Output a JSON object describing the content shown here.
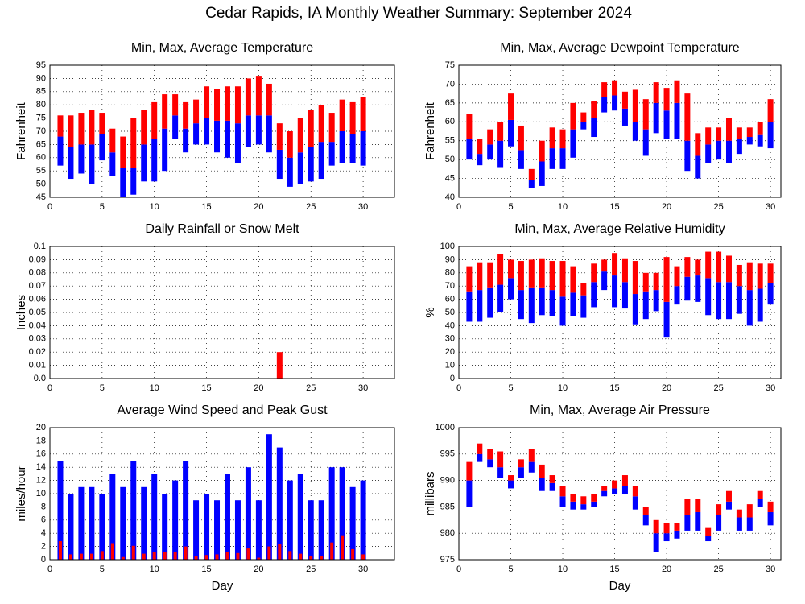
{
  "title": "Cedar Rapids, IA Monthly Weather Summary: September 2024",
  "chart_data": [
    {
      "type": "range",
      "title": "Min, Max, Average Temperature",
      "y_label": "Fahrenheit",
      "x": [
        1,
        2,
        3,
        4,
        5,
        6,
        7,
        8,
        9,
        10,
        11,
        12,
        13,
        14,
        15,
        16,
        17,
        18,
        19,
        20,
        21,
        22,
        23,
        24,
        25,
        26,
        27,
        28,
        29,
        30
      ],
      "xlim": [
        0,
        33
      ],
      "xticks": [
        0,
        5,
        10,
        15,
        20,
        25,
        30
      ],
      "ylim": [
        45,
        95
      ],
      "yticks": [
        45,
        50,
        55,
        60,
        65,
        70,
        75,
        80,
        85,
        90,
        95
      ],
      "grid": true,
      "colors": [
        "#0000ff",
        "#ff0000"
      ],
      "series": [
        {
          "values": [
            57,
            52,
            54,
            50,
            59,
            53,
            45,
            46,
            51,
            51,
            55,
            67,
            62,
            65,
            65,
            62,
            60,
            58,
            64,
            65,
            62,
            52,
            49,
            50,
            51,
            52,
            57,
            58,
            58,
            57
          ]
        },
        {
          "values": [
            68,
            64,
            65,
            65,
            69,
            62,
            56,
            56,
            65,
            67,
            71,
            76,
            71,
            73,
            75,
            74,
            74,
            73,
            76,
            76,
            76,
            63,
            60,
            62,
            64,
            66,
            66,
            70,
            69,
            70
          ]
        },
        {
          "values": [
            76,
            76,
            77,
            78,
            77,
            71,
            68,
            75,
            78,
            81,
            84,
            84,
            81,
            82,
            87,
            86,
            87,
            87,
            90,
            91,
            88,
            73,
            70,
            75,
            78,
            80,
            77,
            82,
            81,
            83
          ]
        }
      ]
    },
    {
      "type": "range",
      "title": "Min, Max, Average Dewpoint Temperature",
      "y_label": "Fahrenheit",
      "x": [
        1,
        2,
        3,
        4,
        5,
        6,
        7,
        8,
        9,
        10,
        11,
        12,
        13,
        14,
        15,
        16,
        17,
        18,
        19,
        20,
        21,
        22,
        23,
        24,
        25,
        26,
        27,
        28,
        29,
        30
      ],
      "xlim": [
        0,
        31
      ],
      "xticks": [
        0,
        5,
        10,
        15,
        20,
        25,
        30
      ],
      "ylim": [
        40,
        75
      ],
      "yticks": [
        40,
        45,
        50,
        55,
        60,
        65,
        70,
        75
      ],
      "grid": true,
      "colors": [
        "#0000ff",
        "#ff0000"
      ],
      "series": [
        {
          "values": [
            50,
            48.5,
            50,
            48,
            53.5,
            47.5,
            42.5,
            43,
            47.5,
            47.5,
            50.5,
            58,
            56,
            62.5,
            63,
            59,
            55,
            51,
            57,
            55.5,
            55.5,
            47,
            45,
            49,
            50,
            49,
            51.5,
            54,
            53.5,
            53
          ]
        },
        {
          "values": [
            55.5,
            51.5,
            54,
            55,
            60.5,
            52.5,
            44.5,
            49.5,
            53,
            53,
            58,
            60,
            61,
            66.5,
            67,
            63.5,
            60,
            58,
            65,
            63,
            65,
            55,
            51,
            54,
            55,
            55,
            55.5,
            56,
            56.5,
            60
          ]
        },
        {
          "values": [
            62,
            55.5,
            58,
            60,
            67.5,
            59,
            47.5,
            55,
            58.5,
            58,
            65,
            62.5,
            65.5,
            70.5,
            71,
            68,
            68.5,
            66,
            70.5,
            69,
            71,
            67.5,
            57,
            58.5,
            58.5,
            61,
            58.5,
            58.5,
            60,
            66
          ]
        }
      ]
    },
    {
      "type": "bar",
      "title": "Daily Rainfall or Snow Melt",
      "y_label": "Inches",
      "x": [
        1,
        2,
        3,
        4,
        5,
        6,
        7,
        8,
        9,
        10,
        11,
        12,
        13,
        14,
        15,
        16,
        17,
        18,
        19,
        20,
        21,
        22,
        23,
        24,
        25,
        26,
        27,
        28,
        29,
        30
      ],
      "xlim": [
        0,
        33
      ],
      "xticks": [
        0,
        5,
        10,
        15,
        20,
        25,
        30
      ],
      "ylim": [
        0,
        0.1
      ],
      "yticks": [
        {
          "value": 0,
          "label": "0.0"
        },
        0.01,
        0.02,
        0.03,
        0.04,
        0.05,
        0.06,
        0.07,
        0.08,
        0.09,
        0.1
      ],
      "grid": true,
      "color": "#ff0000",
      "values": [
        0,
        0,
        0,
        0,
        0,
        0,
        0,
        0,
        0,
        0,
        0,
        0,
        0,
        0,
        0,
        0,
        0,
        0,
        0,
        0,
        0,
        0.02,
        0,
        0,
        0,
        0,
        0,
        0,
        0,
        0
      ]
    },
    {
      "type": "range",
      "title": "Min, Max, Average Relative Humidity",
      "y_label": "%",
      "x": [
        1,
        2,
        3,
        4,
        5,
        6,
        7,
        8,
        9,
        10,
        11,
        12,
        13,
        14,
        15,
        16,
        17,
        18,
        19,
        20,
        21,
        22,
        23,
        24,
        25,
        26,
        27,
        28,
        29,
        30
      ],
      "xlim": [
        0,
        31
      ],
      "xticks": [
        0,
        5,
        10,
        15,
        20,
        25,
        30
      ],
      "ylim": [
        0,
        100
      ],
      "yticks": [
        0,
        10,
        20,
        30,
        40,
        50,
        60,
        70,
        80,
        90,
        100
      ],
      "grid": true,
      "colors": [
        "#0000ff",
        "#ff0000"
      ],
      "series": [
        {
          "values": [
            43,
            43,
            46,
            50,
            60,
            45,
            42,
            48,
            47,
            40,
            47,
            46,
            54,
            67,
            54,
            53,
            41,
            45,
            51,
            31,
            56,
            59,
            58,
            48,
            45,
            45,
            49,
            40,
            43,
            56
          ]
        },
        {
          "values": [
            66,
            67,
            69,
            71,
            76,
            67,
            69,
            69,
            67,
            62,
            65,
            63,
            73,
            81,
            78,
            73,
            64,
            66,
            67,
            58,
            70,
            77,
            78,
            76,
            73,
            73,
            70,
            67,
            68,
            72
          ]
        },
        {
          "values": [
            85,
            88,
            88,
            94,
            90,
            89,
            90,
            91,
            89,
            89,
            85,
            72,
            87,
            90,
            95,
            91,
            89,
            80,
            80,
            92,
            85,
            92,
            90,
            96,
            96,
            93,
            86,
            88,
            87,
            87
          ]
        }
      ]
    },
    {
      "type": "overlay_bar",
      "title": "Average Wind Speed and Peak Gust",
      "y_label": "miles/hour",
      "x_label": "Day",
      "x": [
        1,
        2,
        3,
        4,
        5,
        6,
        7,
        8,
        9,
        10,
        11,
        12,
        13,
        14,
        15,
        16,
        17,
        18,
        19,
        20,
        21,
        22,
        23,
        24,
        25,
        26,
        27,
        28,
        29,
        30
      ],
      "xlim": [
        0,
        33
      ],
      "xticks": [
        0,
        5,
        10,
        15,
        20,
        25,
        30
      ],
      "ylim": [
        0,
        20
      ],
      "yticks": [
        0,
        2,
        4,
        6,
        8,
        10,
        12,
        14,
        16,
        18,
        20
      ],
      "grid": true,
      "series": [
        {
          "color": "#0000ff",
          "values": [
            15,
            10,
            11,
            11,
            10,
            13,
            11,
            15,
            11,
            13,
            10,
            12,
            15,
            9,
            10,
            9,
            13,
            9,
            14,
            9,
            19,
            17,
            12,
            13,
            9,
            9,
            14,
            14,
            11,
            12
          ]
        },
        {
          "color": "#ff0000",
          "values": [
            2.8,
            0.8,
            0.9,
            0.9,
            1.3,
            2.5,
            0.4,
            2.1,
            0.9,
            1.1,
            1.1,
            1.1,
            2,
            0.5,
            0.7,
            0.8,
            1.1,
            1,
            1.7,
            0.3,
            2,
            2.4,
            1.3,
            0.9,
            0.5,
            0.5,
            2.6,
            3.7,
            1.6,
            0.8
          ]
        }
      ]
    },
    {
      "type": "range",
      "title": "Min, Max, Average Air Pressure",
      "y_label": "millibars",
      "x_label": "Day",
      "x": [
        1,
        2,
        3,
        4,
        5,
        6,
        7,
        8,
        9,
        10,
        11,
        12,
        13,
        14,
        15,
        16,
        17,
        18,
        19,
        20,
        21,
        22,
        23,
        24,
        25,
        26,
        27,
        28,
        29,
        30
      ],
      "xlim": [
        0,
        31
      ],
      "xticks": [
        0,
        5,
        10,
        15,
        20,
        25,
        30
      ],
      "ylim": [
        975,
        1000
      ],
      "yticks": [
        975,
        980,
        985,
        990,
        995,
        1000
      ],
      "grid": true,
      "colors": [
        "#0000ff",
        "#ff0000"
      ],
      "series": [
        {
          "values": [
            985,
            993.5,
            992.5,
            990.5,
            988.5,
            990.5,
            991.5,
            988,
            988,
            985,
            984.5,
            984.5,
            985,
            987,
            987.5,
            987.5,
            984.5,
            981.5,
            976.5,
            978.5,
            979,
            980.5,
            980.5,
            978.5,
            980.5,
            984.5,
            980.5,
            980.5,
            985,
            981.5
          ]
        },
        {
          "values": [
            990,
            995,
            994,
            992.5,
            990,
            992.5,
            993.5,
            990.5,
            989.5,
            987,
            986,
            985.5,
            986,
            988,
            988.5,
            989,
            987,
            983.5,
            980,
            980,
            980.5,
            983.5,
            984,
            979.5,
            983.5,
            986,
            983,
            983,
            986.5,
            984
          ]
        },
        {
          "values": [
            993.5,
            997,
            996,
            995.5,
            991,
            994,
            996,
            993,
            991,
            989,
            987.5,
            987,
            987.5,
            989,
            990,
            991,
            989,
            985,
            982.5,
            982,
            982,
            986.5,
            986.5,
            981,
            985.5,
            988,
            984.5,
            985.5,
            988,
            986
          ]
        }
      ]
    }
  ]
}
